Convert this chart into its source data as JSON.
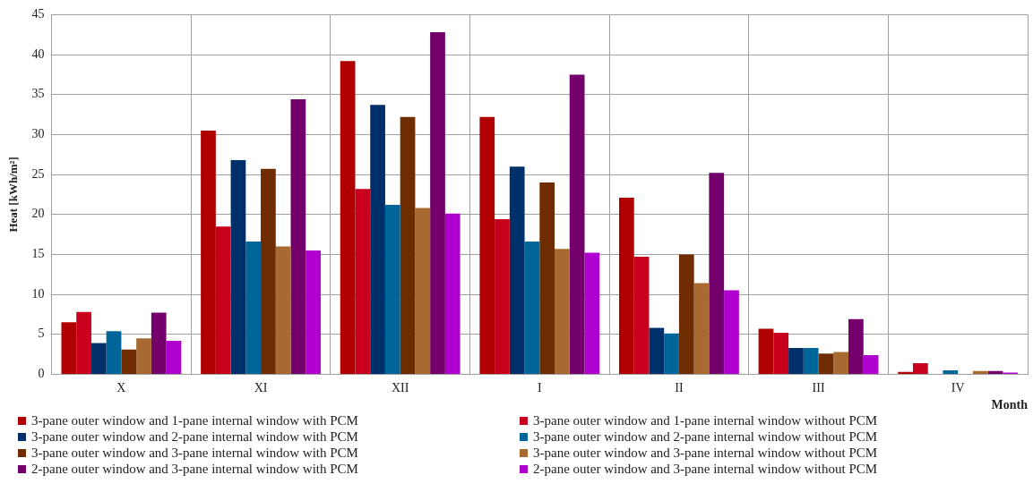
{
  "chart_data": {
    "type": "bar",
    "xlabel": "Month",
    "ylabel": "Heat [kWh/m²]",
    "categories": [
      "X",
      "XI",
      "XII",
      "I",
      "II",
      "III",
      "IV"
    ],
    "series": [
      {
        "name": "3-pane outer window and 1-pane internal window with PCM",
        "color": "#b00000",
        "values": [
          6.5,
          30.5,
          39.2,
          32.2,
          22.1,
          5.7,
          0.3
        ]
      },
      {
        "name": "3-pane outer window and 1-pane internal window without PCM",
        "color": "#c8001e",
        "values": [
          7.8,
          18.5,
          23.2,
          19.4,
          14.7,
          5.2,
          1.4
        ]
      },
      {
        "name": "3-pane outer window and 2-pane internal window with PCM",
        "color": "#00306a",
        "values": [
          3.9,
          26.8,
          33.7,
          26.0,
          5.8,
          3.3,
          0
        ]
      },
      {
        "name": "3-pane outer window and 2-pane internal window without PCM",
        "color": "#006699",
        "values": [
          5.4,
          16.6,
          21.2,
          16.6,
          5.1,
          3.3,
          0.5
        ]
      },
      {
        "name": "3-pane outer window and 3-pane internal window with PCM",
        "color": "#6e2c00",
        "values": [
          3.1,
          25.7,
          32.2,
          24.0,
          15.0,
          2.6,
          0
        ]
      },
      {
        "name": "3-pane outer window and 3-pane internal window without PCM",
        "color": "#a86a30",
        "values": [
          4.5,
          16.0,
          20.8,
          15.7,
          11.4,
          2.8,
          0.4
        ]
      },
      {
        "name": "2-pane outer window and 3-pane internal window with PCM",
        "color": "#73006b",
        "values": [
          7.7,
          34.4,
          42.8,
          37.5,
          25.2,
          6.9,
          0.4
        ]
      },
      {
        "name": "2-pane outer window and 3-pane internal window without PCM",
        "color": "#b000d0",
        "values": [
          4.2,
          15.5,
          20.1,
          15.2,
          10.5,
          2.4,
          0.2
        ]
      }
    ],
    "ylim": [
      0,
      45
    ],
    "yticks": [
      0,
      5,
      10,
      15,
      20,
      25,
      30,
      35,
      40,
      45
    ],
    "grid": true,
    "legend": "bottom"
  }
}
